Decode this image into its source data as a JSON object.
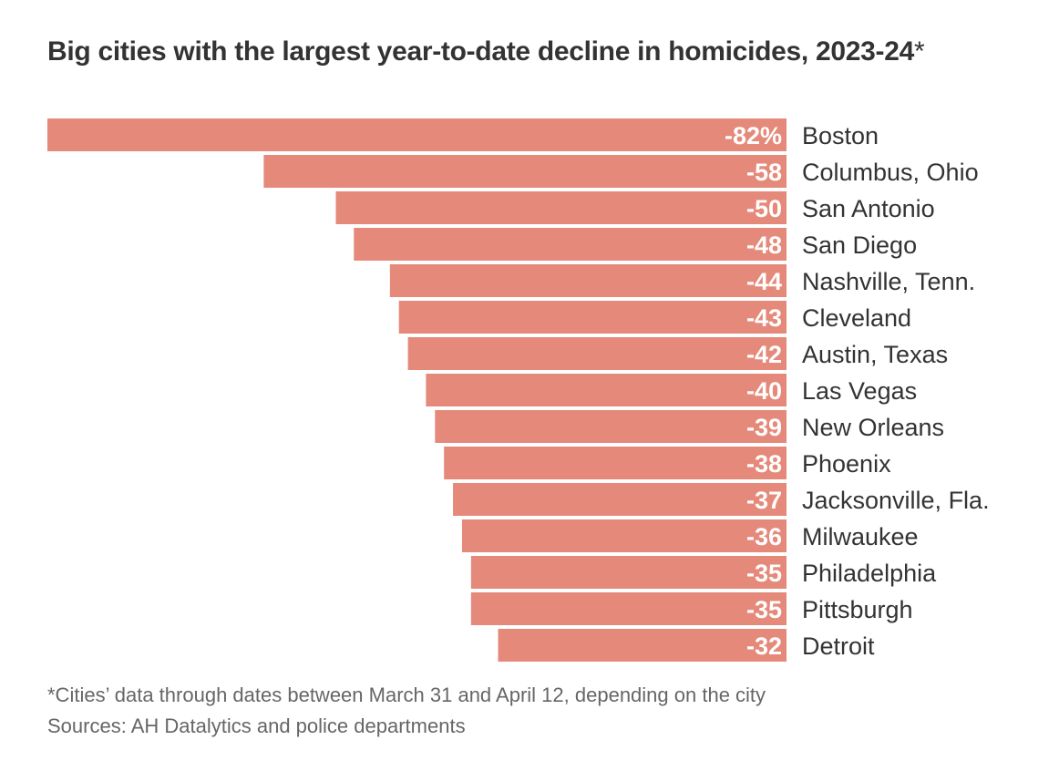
{
  "chart_data": {
    "type": "bar",
    "orientation": "horizontal",
    "title": "Big cities with the largest year-to-date decline in homicides, 2023-24",
    "title_marker": "*",
    "categories": [
      "Boston",
      "Columbus, Ohio",
      "San Antonio",
      "San Diego",
      "Nashville, Tenn.",
      "Cleveland",
      "Austin, Texas",
      "Las Vegas",
      "New Orleans",
      "Phoenix",
      "Jacksonville, Fla.",
      "Milwaukee",
      "Philadelphia",
      "Pittsburgh",
      "Detroit"
    ],
    "values": [
      -82,
      -58,
      -50,
      -48,
      -44,
      -43,
      -42,
      -40,
      -39,
      -38,
      -37,
      -36,
      -35,
      -35,
      -32
    ],
    "value_labels": [
      "-82%",
      "-58",
      "-50",
      "-48",
      "-44",
      "-43",
      "-42",
      "-40",
      "-39",
      "-38",
      "-37",
      "-36",
      "-35",
      "-35",
      "-32"
    ],
    "unit": "%",
    "xlim": [
      -82,
      0
    ],
    "grid": false,
    "xlabel": "",
    "ylabel": "",
    "bar_color": "#E5897A"
  },
  "footnotes": {
    "note": "*Cities’ data through dates between March 31 and April 12, depending on the city",
    "source": "Sources: AH Datalytics and police departments"
  }
}
